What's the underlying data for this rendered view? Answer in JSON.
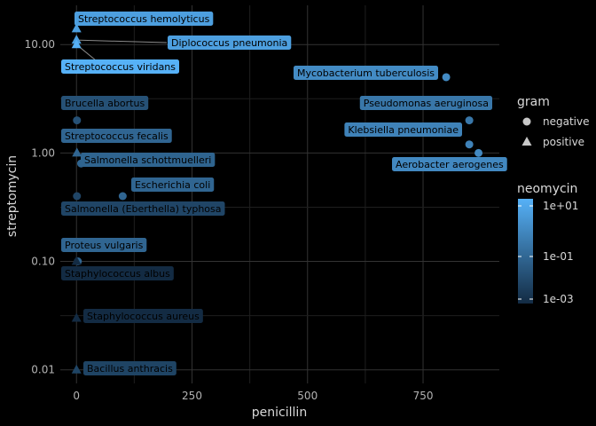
{
  "chart_data": {
    "type": "scatter",
    "xlabel": "penicillin",
    "ylabel": "streptomycin",
    "x_range": [
      -35,
      915
    ],
    "x_ticks": [
      0,
      250,
      500,
      750
    ],
    "x_tick_labels": [
      "0",
      "250",
      "500",
      "750"
    ],
    "y_scale": "log10",
    "y_range": [
      0.0075,
      23
    ],
    "y_ticks": [
      0.01,
      0.1,
      1,
      10
    ],
    "y_tick_labels": [
      "0.01",
      "0.10",
      "1.00",
      "10.00"
    ],
    "grid": true,
    "legend_position": "right",
    "shape_legend": {
      "title": "gram",
      "entries": [
        {
          "label": "negative",
          "shape": "circle"
        },
        {
          "label": "positive",
          "shape": "triangle"
        }
      ]
    },
    "color_legend": {
      "title": "neomycin",
      "scale": "log10",
      "tick_labels": [
        "1e+01",
        "1e-01",
        "1e-03"
      ],
      "low_color": "#132B43",
      "high_color": "#56B1F7"
    },
    "points": [
      {
        "bacteria": "Aerobacter aerogenes",
        "penicillin": 870,
        "streptomycin": 1.0,
        "neomycin": 1.6,
        "gram": "negative"
      },
      {
        "bacteria": "Brucella abortus",
        "penicillin": 1.0,
        "streptomycin": 2.0,
        "neomycin": 0.02,
        "gram": "negative"
      },
      {
        "bacteria": "Bacillus anthracis",
        "penicillin": 0.001,
        "streptomycin": 0.01,
        "neomycin": 0.007,
        "gram": "positive"
      },
      {
        "bacteria": "Diplococcus pneumonia",
        "penicillin": 0.005,
        "streptomycin": 11.0,
        "neomycin": 10.0,
        "gram": "positive"
      },
      {
        "bacteria": "Escherichia coli",
        "penicillin": 100,
        "streptomycin": 0.4,
        "neomycin": 0.1,
        "gram": "negative"
      },
      {
        "bacteria": "Klebsiella pneumoniae",
        "penicillin": 850,
        "streptomycin": 1.2,
        "neomycin": 1.0,
        "gram": "negative"
      },
      {
        "bacteria": "Mycobacterium tuberculosis",
        "penicillin": 800,
        "streptomycin": 5.0,
        "neomycin": 2.0,
        "gram": "negative"
      },
      {
        "bacteria": "Proteus vulgaris",
        "penicillin": 3.0,
        "streptomycin": 0.1,
        "neomycin": 0.1,
        "gram": "negative"
      },
      {
        "bacteria": "Pseudomonas aeruginosa",
        "penicillin": 850,
        "streptomycin": 2.0,
        "neomycin": 0.4,
        "gram": "negative"
      },
      {
        "bacteria": "Salmonella (Eberthella) typhosa",
        "penicillin": 1.0,
        "streptomycin": 0.4,
        "neomycin": 0.008,
        "gram": "negative"
      },
      {
        "bacteria": "Salmonella schottmuelleri",
        "penicillin": 10.0,
        "streptomycin": 0.8,
        "neomycin": 0.09,
        "gram": "negative"
      },
      {
        "bacteria": "Staphylococcus albus",
        "penicillin": 0.007,
        "streptomycin": 0.1,
        "neomycin": 0.001,
        "gram": "positive"
      },
      {
        "bacteria": "Staphylococcus aureus",
        "penicillin": 0.03,
        "streptomycin": 0.03,
        "neomycin": 0.001,
        "gram": "positive"
      },
      {
        "bacteria": "Streptococcus fecalis",
        "penicillin": 1.0,
        "streptomycin": 1.0,
        "neomycin": 0.1,
        "gram": "positive"
      },
      {
        "bacteria": "Streptococcus hemolyticus",
        "penicillin": 0.001,
        "streptomycin": 14.0,
        "neomycin": 10.0,
        "gram": "positive"
      },
      {
        "bacteria": "Streptococcus viridans",
        "penicillin": 0.005,
        "streptomycin": 10.0,
        "neomycin": 40.0,
        "gram": "positive"
      }
    ]
  }
}
